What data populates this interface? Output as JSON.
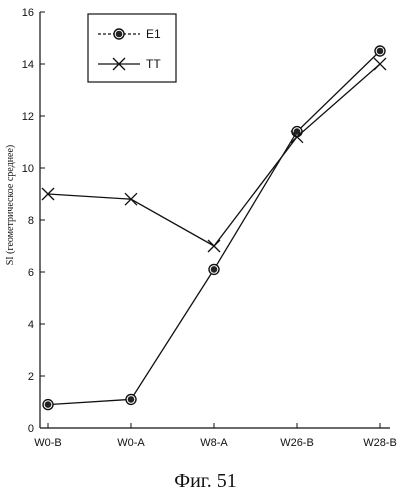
{
  "caption": "Фиг. 51",
  "chart_data": {
    "type": "line",
    "categories": [
      "W0-B",
      "W0-A",
      "W8-A",
      "W26-B",
      "W28-B"
    ],
    "ylabel": "SI (геометрическое среднее)",
    "ylim": [
      0,
      16
    ],
    "yticks": [
      0,
      2,
      4,
      6,
      8,
      10,
      12,
      14,
      16
    ],
    "grid": false,
    "legend_position": "top-left",
    "series": [
      {
        "name": "E1",
        "marker": "circle",
        "values": [
          0.9,
          1.1,
          6.1,
          11.4,
          14.5
        ]
      },
      {
        "name": "TT",
        "marker": "x",
        "values": [
          9.0,
          8.8,
          7.0,
          11.2,
          14.0
        ]
      }
    ]
  }
}
